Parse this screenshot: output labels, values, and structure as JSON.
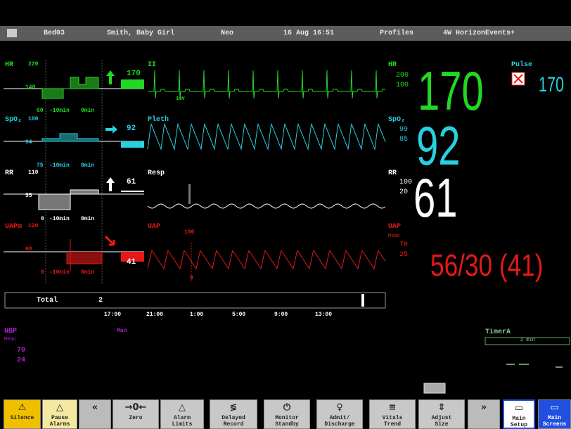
{
  "status_bar": {
    "bed": "Bed03",
    "patient": "Smith, Baby Girl",
    "category": "Neo",
    "datetime": "16 Aug 16:51",
    "profiles": "Profiles",
    "events": "4W HorizonEvents+"
  },
  "trend_time_labels": [
    "-10min",
    "0min"
  ],
  "trends": [
    {
      "label": "HR",
      "high": "220",
      "mid": "140",
      "low": "60",
      "value": "170"
    },
    {
      "label": "SpO₂",
      "high": "100",
      "mid": "94",
      "low": "75",
      "value": "92"
    },
    {
      "label": "RR",
      "high": "110",
      "mid": "55",
      "low": "0",
      "value": "61"
    },
    {
      "label": "UAPm",
      "high": "120",
      "mid": "60",
      "low": "0",
      "value": "41"
    }
  ],
  "waves": [
    {
      "label": "II",
      "note": "1mV"
    },
    {
      "label": "Pleth"
    },
    {
      "label": "Resp"
    },
    {
      "label": "UAP",
      "scale_top": "100",
      "scale_bottom": "0"
    }
  ],
  "numerics": {
    "hr": {
      "label": "HR",
      "high": "200",
      "low": "100",
      "value": "170"
    },
    "pulse": {
      "label": "Pulse",
      "value": "170"
    },
    "spo2": {
      "label": "SpO₂",
      "high": "99",
      "low": "85",
      "value": "92"
    },
    "rr": {
      "label": "RR",
      "high": "100",
      "low": "20",
      "value": "61"
    },
    "uap": {
      "label": "UAP",
      "sub": "Mean",
      "high": "70",
      "low": "25",
      "value": "56/30 (41)"
    }
  },
  "timeline": {
    "label": "Total",
    "value": "2",
    "times": [
      "17:00",
      "21:00",
      "1:00",
      "5:00",
      "9:00",
      "13:00"
    ]
  },
  "nbp": {
    "label": "NBP",
    "sub": "Mean",
    "high": "70",
    "low": "24",
    "mode": "Man"
  },
  "timer": {
    "label": "TimerA",
    "value": "2 min"
  },
  "buttons": [
    {
      "lines": [
        "Silence"
      ]
    },
    {
      "lines": [
        "Pause",
        "Alarms"
      ]
    },
    {
      "lines": []
    },
    {
      "lines": [
        "Zero"
      ]
    },
    {
      "lines": [
        "Alarm",
        "Limits"
      ]
    },
    {
      "lines": [
        "Delayed",
        "Record"
      ]
    },
    {
      "lines": [
        "Monitor",
        "Standby"
      ]
    },
    {
      "lines": [
        "Admit/",
        "Discharge"
      ]
    },
    {
      "lines": [
        "Vitals",
        "Trend"
      ]
    },
    {
      "lines": [
        "Adjust",
        "Size"
      ]
    },
    {
      "lines": []
    },
    {
      "lines": [
        "Main",
        "Setup"
      ]
    },
    {
      "lines": [
        "Main",
        "Screens"
      ]
    }
  ]
}
